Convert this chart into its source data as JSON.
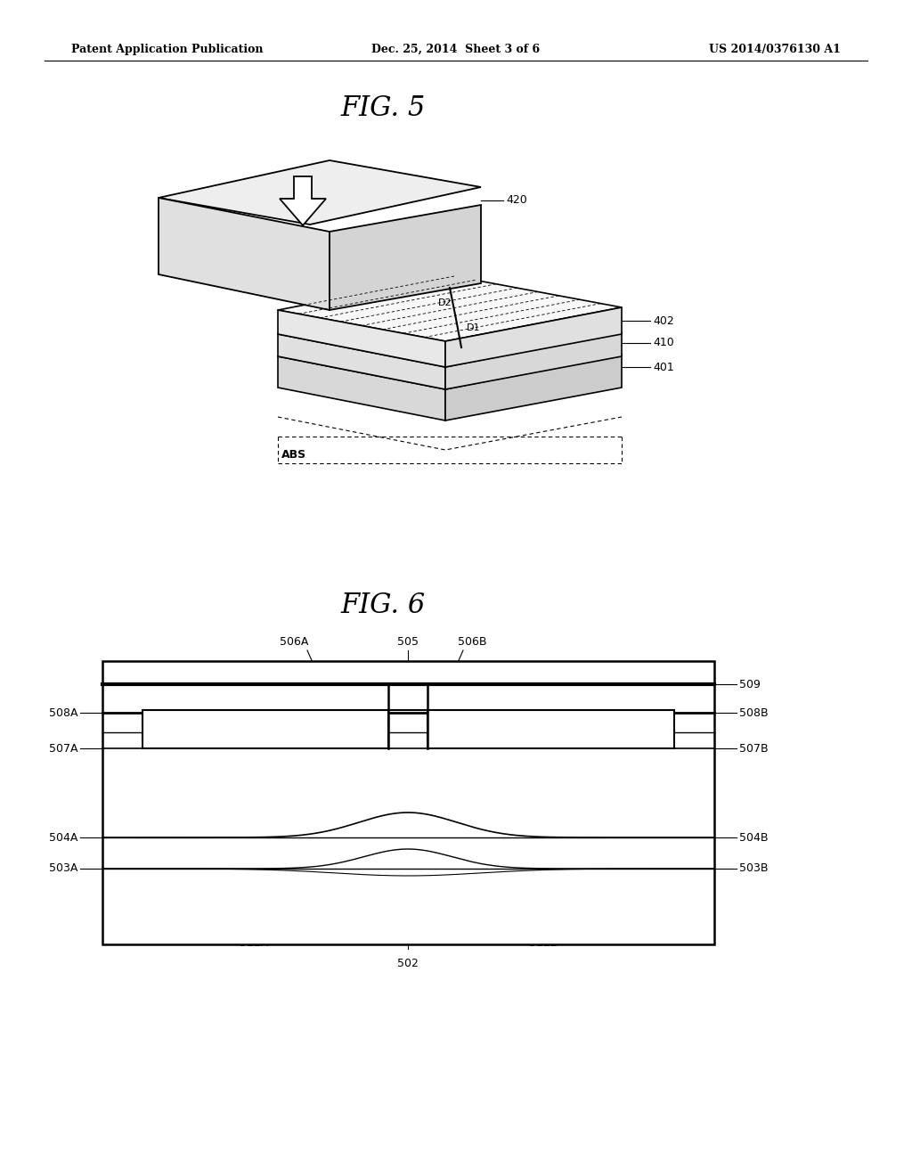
{
  "bg_color": "#ffffff",
  "header_left": "Patent Application Publication",
  "header_mid": "Dec. 25, 2014  Sheet 3 of 6",
  "header_right": "US 2014/0376130 A1",
  "fig5_title": "FIG. 5",
  "fig6_title": "FIG. 6"
}
